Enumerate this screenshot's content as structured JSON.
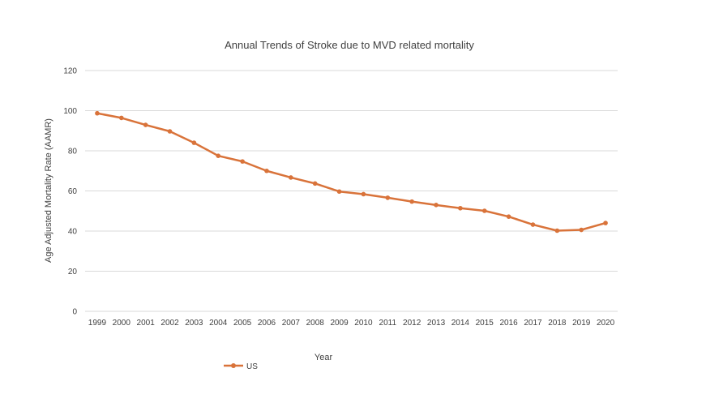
{
  "chart_data": {
    "type": "line",
    "title": "Annual Trends of  Stroke due to MVD related mortality",
    "xlabel": "Year",
    "ylabel": "Age Adjusted Mortality Rate (AAMR)",
    "categories": [
      "1999",
      "2000",
      "2001",
      "2002",
      "2003",
      "2004",
      "2005",
      "2006",
      "2007",
      "2008",
      "2009",
      "2010",
      "2011",
      "2012",
      "2013",
      "2014",
      "2015",
      "2016",
      "2017",
      "2018",
      "2019",
      "2020"
    ],
    "series": [
      {
        "name": "US",
        "color": "#d9733a",
        "values": [
          98.7,
          96.4,
          92.9,
          89.7,
          84.0,
          77.5,
          74.7,
          70.0,
          66.7,
          63.7,
          59.7,
          58.4,
          56.6,
          54.7,
          53.0,
          51.4,
          50.1,
          47.2,
          43.2,
          40.2,
          40.6,
          44.0
        ]
      }
    ],
    "ylim": [
      0,
      120
    ],
    "yticks": [
      0,
      20,
      40,
      60,
      80,
      100,
      120
    ],
    "grid": true,
    "legend_position": "bottom-left"
  }
}
